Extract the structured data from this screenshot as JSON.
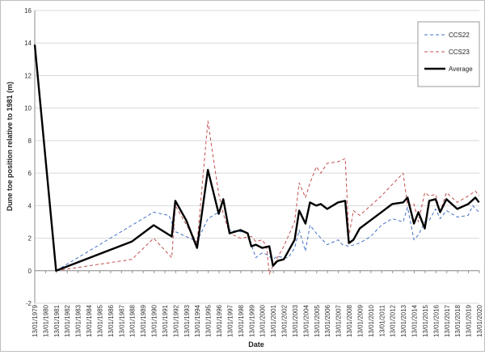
{
  "chart_data": {
    "type": "line",
    "title": "",
    "xlabel": "Date",
    "ylabel": "Dune toe position relative to 1981 (m)",
    "ylim": [
      -2,
      16
    ],
    "yticks": [
      -2,
      0,
      2,
      4,
      6,
      8,
      10,
      12,
      14,
      16
    ],
    "xlim": [
      "1979-01-13",
      "2020-01-13"
    ],
    "xtick_labels": [
      "13/01/1979",
      "13/01/1980",
      "13/01/1981",
      "13/01/1982",
      "13/01/1983",
      "13/01/1984",
      "13/01/1985",
      "13/01/1986",
      "13/01/1987",
      "13/01/1988",
      "13/01/1989",
      "13/01/1990",
      "13/01/1991",
      "13/01/1992",
      "13/01/1993",
      "13/01/1994",
      "13/01/1995",
      "13/01/1996",
      "13/01/1997",
      "13/01/1998",
      "13/01/1999",
      "13/01/2000",
      "13/01/2001",
      "13/01/2002",
      "13/01/2003",
      "13/01/2004",
      "13/01/2005",
      "13/01/2006",
      "13/01/2007",
      "13/01/2008",
      "13/01/2009",
      "13/01/2010",
      "13/01/2011",
      "13/01/2012",
      "13/01/2013",
      "13/01/2014",
      "13/01/2015",
      "13/01/2016",
      "13/01/2017",
      "13/01/2018",
      "13/01/2019",
      "13/01/2020"
    ],
    "grid": "horizontal",
    "legend_position": "top-right",
    "series": [
      {
        "name": "CCS22",
        "color": "#4472c4",
        "style": "dashed",
        "x": [
          "1981-01-01",
          "1988-01-01",
          "1990-01-01",
          "1991-06-01",
          "1992-01-01",
          "1994-01-01",
          "1995-01-01",
          "1996-01-01",
          "1996-06-01",
          "1997-01-01",
          "1998-01-01",
          "1998-09-01",
          "1999-01-01",
          "1999-06-01",
          "2000-01-01",
          "2000-06-01",
          "2001-01-01",
          "2001-06-01",
          "2002-01-01",
          "2002-06-01",
          "2003-01-01",
          "2003-06-01",
          "2004-01-01",
          "2004-06-01",
          "2005-01-01",
          "2006-01-01",
          "2007-01-01",
          "2007-06-01",
          "2008-01-01",
          "2009-01-01",
          "2010-01-01",
          "2011-01-01",
          "2012-01-01",
          "2013-01-01",
          "2013-06-01",
          "2014-01-01",
          "2014-06-01",
          "2015-01-01",
          "2015-06-01",
          "2016-01-01",
          "2016-06-01",
          "2017-01-01",
          "2018-01-01",
          "2019-01-01",
          "2019-06-01",
          "2020-01-01"
        ],
        "y": [
          0,
          2.8,
          3.6,
          3.4,
          2.4,
          1.8,
          3.2,
          3.6,
          4.3,
          2.5,
          2.4,
          2.3,
          1.6,
          0.8,
          1.1,
          1.0,
          0.7,
          0.9,
          0.8,
          0.8,
          1.4,
          2.5,
          1.2,
          2.8,
          2.3,
          1.6,
          1.9,
          1.6,
          1.5,
          1.7,
          2.1,
          2.8,
          3.2,
          3.0,
          3.9,
          1.9,
          2.2,
          3.0,
          3.1,
          3.8,
          3.2,
          3.7,
          3.3,
          3.4,
          4.0,
          3.6
        ]
      },
      {
        "name": "CCS23",
        "color": "#c0504d",
        "style": "dashed",
        "x": [
          "1981-01-01",
          "1988-01-01",
          "1990-01-01",
          "1991-09-01",
          "1992-01-01",
          "1994-01-01",
          "1995-01-01",
          "1996-01-01",
          "1996-06-01",
          "1997-01-01",
          "1998-01-01",
          "1999-01-01",
          "1999-06-01",
          "2000-01-01",
          "2000-06-01",
          "2000-09-01",
          "2001-01-01",
          "2002-01-01",
          "2003-01-01",
          "2003-06-01",
          "2004-01-01",
          "2004-06-01",
          "2005-01-01",
          "2005-06-01",
          "2006-01-01",
          "2007-01-01",
          "2007-09-01",
          "2008-01-01",
          "2008-06-01",
          "2009-01-01",
          "2010-01-01",
          "2011-01-01",
          "2012-01-01",
          "2013-01-01",
          "2013-06-01",
          "2014-01-01",
          "2014-06-01",
          "2015-01-01",
          "2015-06-01",
          "2016-01-01",
          "2016-06-01",
          "2017-01-01",
          "2018-01-01",
          "2019-01-01",
          "2019-09-01",
          "2020-01-01"
        ],
        "y": [
          0,
          0.7,
          2.0,
          0.8,
          4.0,
          1.7,
          9.2,
          4.7,
          3.5,
          2.3,
          2.0,
          2.1,
          1.8,
          1.9,
          1.5,
          -0.2,
          0.3,
          1.5,
          3.0,
          5.4,
          4.5,
          5.4,
          6.4,
          6.0,
          6.6,
          6.7,
          6.9,
          2.1,
          3.7,
          3.4,
          4.0,
          4.6,
          5.3,
          6.0,
          4.0,
          4.1,
          3.0,
          4.8,
          4.6,
          4.7,
          3.6,
          4.8,
          4.2,
          4.6,
          4.9,
          4.6
        ]
      },
      {
        "name": "Average",
        "color": "#000000",
        "style": "solid",
        "x": [
          "1979-01-13",
          "1981-01-01",
          "1988-01-01",
          "1990-01-01",
          "1991-09-01",
          "1992-01-01",
          "1993-01-01",
          "1994-01-01",
          "1995-01-01",
          "1996-01-01",
          "1996-06-01",
          "1997-01-01",
          "1998-01-01",
          "1998-09-01",
          "1999-01-01",
          "1999-06-01",
          "2000-01-01",
          "2000-09-01",
          "2001-01-01",
          "2001-06-01",
          "2002-01-01",
          "2003-01-01",
          "2003-06-01",
          "2004-01-01",
          "2004-06-01",
          "2005-01-01",
          "2005-06-01",
          "2006-01-01",
          "2007-01-01",
          "2007-09-01",
          "2008-01-01",
          "2008-06-01",
          "2009-01-01",
          "2010-01-01",
          "2011-01-01",
          "2012-01-01",
          "2013-01-01",
          "2013-06-01",
          "2014-01-01",
          "2014-06-01",
          "2015-01-01",
          "2015-06-01",
          "2016-01-01",
          "2016-06-01",
          "2017-01-01",
          "2018-01-01",
          "2019-01-01",
          "2019-09-01",
          "2020-01-01"
        ],
        "y": [
          13.9,
          0,
          1.8,
          2.8,
          2.1,
          4.3,
          3.1,
          1.4,
          6.2,
          3.5,
          4.4,
          2.3,
          2.5,
          2.3,
          1.5,
          1.6,
          1.4,
          1.5,
          0.3,
          0.6,
          0.7,
          1.9,
          3.7,
          2.9,
          4.2,
          4.0,
          4.1,
          3.8,
          4.2,
          4.3,
          1.7,
          1.9,
          2.6,
          3.1,
          3.6,
          4.1,
          4.2,
          4.5,
          2.9,
          3.6,
          2.6,
          4.3,
          4.4,
          3.6,
          4.4,
          3.8,
          4.1,
          4.5,
          4.2
        ]
      }
    ]
  }
}
